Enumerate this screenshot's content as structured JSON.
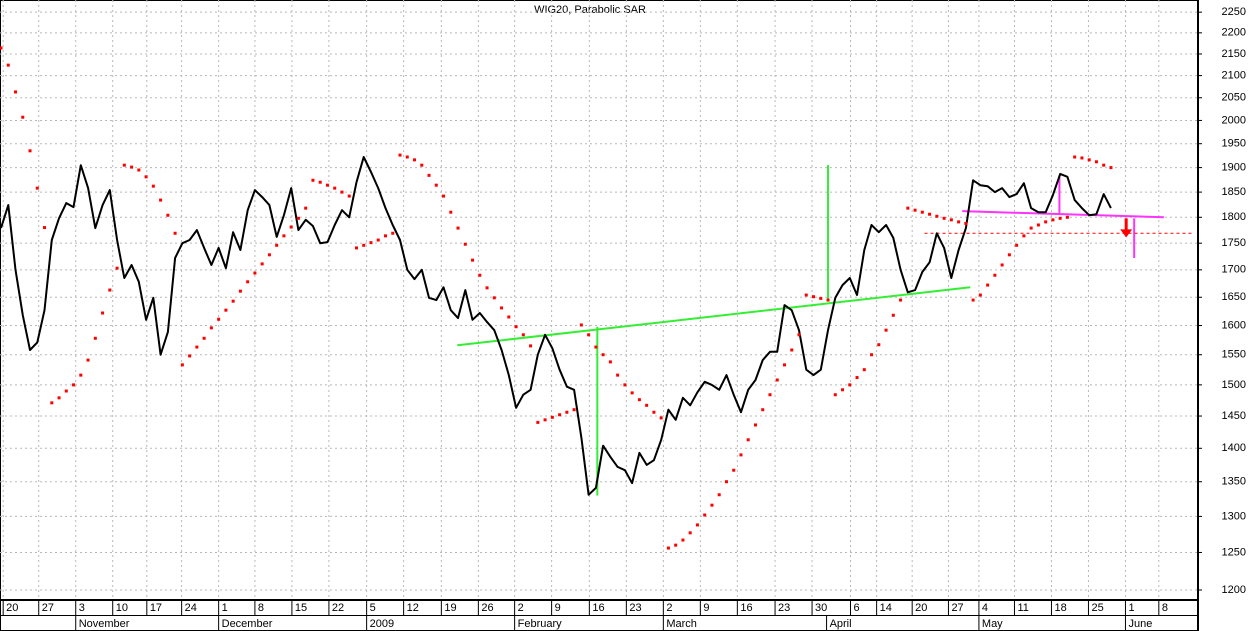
{
  "chart_data": {
    "type": "line",
    "title": "WIG20, Parabolic SAR",
    "x": [
      0,
      1,
      2,
      3,
      4,
      5,
      6,
      7,
      8,
      9,
      10,
      11,
      12,
      13,
      14,
      15,
      16,
      17,
      18,
      19,
      20,
      21,
      22,
      23,
      24,
      25,
      26,
      27,
      28,
      29,
      30,
      31,
      32,
      33,
      34,
      35,
      36,
      37,
      38,
      39,
      40,
      41,
      42,
      43,
      44,
      45,
      46,
      47,
      48,
      49,
      50,
      51,
      52,
      53,
      54,
      55,
      56,
      57,
      58,
      59,
      60,
      61,
      62,
      63,
      64,
      65,
      66,
      67,
      68,
      69,
      70,
      71,
      72,
      73,
      74,
      75,
      76,
      77,
      78,
      79,
      80,
      81,
      82,
      83,
      84,
      85,
      86,
      87,
      88,
      89,
      90,
      91,
      92,
      93,
      94,
      95,
      96,
      97,
      98,
      99,
      100,
      101,
      102,
      103,
      104,
      105,
      106,
      107,
      108,
      109,
      110,
      111,
      112,
      113,
      114,
      115,
      116,
      117,
      118,
      119,
      120,
      121,
      122,
      123,
      124,
      125,
      126,
      127,
      128,
      129,
      130,
      131,
      132,
      133,
      134,
      135,
      136,
      137,
      138,
      139,
      140,
      141,
      142,
      143,
      144,
      145,
      146,
      147,
      148,
      149,
      150,
      151,
      152,
      153
    ],
    "series": [
      {
        "color": "#000000",
        "style": "line",
        "values": [
          1779,
          1824,
          1700,
          1618,
          1558,
          1571,
          1627,
          1756,
          1798,
          1828,
          1820,
          1905,
          1858,
          1779,
          1824,
          1854,
          1756,
          1685,
          1709,
          1678,
          1610,
          1649,
          1550,
          1589,
          1722,
          1750,
          1756,
          1775,
          1741,
          1709,
          1741,
          1703,
          1771,
          1737,
          1814,
          1854,
          1840,
          1824,
          1762,
          1804,
          1858,
          1775,
          1795,
          1783,
          1750,
          1752,
          1785,
          1814,
          1800,
          1870,
          1922,
          1891,
          1858,
          1818,
          1785,
          1756,
          1700,
          1683,
          1700,
          1649,
          1645,
          1668,
          1627,
          1613,
          1663,
          1610,
          1622,
          1606,
          1592,
          1558,
          1516,
          1463,
          1484,
          1492,
          1550,
          1584,
          1561,
          1525,
          1497,
          1492,
          1416,
          1331,
          1341,
          1404,
          1387,
          1372,
          1367,
          1348,
          1393,
          1375,
          1382,
          1413,
          1460,
          1444,
          1479,
          1467,
          1488,
          1505,
          1500,
          1492,
          1516,
          1484,
          1456,
          1492,
          1508,
          1541,
          1555,
          1555,
          1636,
          1627,
          1592,
          1525,
          1516,
          1525,
          1592,
          1649,
          1672,
          1685,
          1654,
          1737,
          1785,
          1771,
          1785,
          1760,
          1700,
          1659,
          1663,
          1696,
          1714,
          1769,
          1741,
          1685,
          1737,
          1779,
          1874,
          1864,
          1862,
          1850,
          1858,
          1840,
          1846,
          1868,
          1818,
          1810,
          1810,
          1844,
          1887,
          1881,
          1834,
          1818,
          1804,
          1806,
          1846,
          1818
        ]
      },
      {
        "color": "#ff0000",
        "style": "dots",
        "values": [
          2164,
          2124,
          2063,
          2007,
          1935,
          1858,
          1780,
          1471,
          1479,
          1490,
          1500,
          1516,
          1541,
          1578,
          1622,
          1663,
          1703,
          1905,
          1901,
          1895,
          1881,
          1862,
          1834,
          1804,
          1769,
          1533,
          1548,
          1563,
          1578,
          1596,
          1611,
          1627,
          1643,
          1661,
          1678,
          1694,
          1711,
          1728,
          1746,
          1764,
          1781,
          1798,
          1818,
          1874,
          1870,
          1864,
          1858,
          1850,
          1842,
          1741,
          1746,
          1751,
          1756,
          1764,
          1769,
          1926,
          1922,
          1916,
          1905,
          1884,
          1864,
          1842,
          1810,
          1779,
          1748,
          1718,
          1690,
          1667,
          1649,
          1631,
          1615,
          1598,
          1584,
          1565,
          1440,
          1444,
          1448,
          1452,
          1456,
          1460,
          1601,
          1584,
          1563,
          1550,
          1538,
          1516,
          1500,
          1487,
          1476,
          1467,
          1456,
          1447,
          1256,
          1260,
          1267,
          1277,
          1288,
          1302,
          1316,
          1331,
          1350,
          1367,
          1390,
          1413,
          1436,
          1460,
          1484,
          1508,
          1533,
          1558,
          1584,
          1654,
          1651,
          1648,
          1645,
          1484,
          1492,
          1500,
          1512,
          1525,
          1550,
          1567,
          1592,
          1618,
          1645,
          1818,
          1814,
          1810,
          1806,
          1802,
          1798,
          1795,
          1791,
          1788,
          1645,
          1654,
          1672,
          1690,
          1709,
          1728,
          1746,
          1764,
          1779,
          1785,
          1791,
          1795,
          1798,
          1800,
          1922,
          1920,
          1916,
          1912,
          1905,
          1900
        ]
      }
    ],
    "log_scale": true,
    "grid": true,
    "xlim": [
      0,
      165
    ],
    "ylim": [
      1187,
      2280
    ],
    "yticks": [
      1200,
      1250,
      1300,
      1350,
      1400,
      1450,
      1500,
      1550,
      1600,
      1650,
      1700,
      1750,
      1800,
      1850,
      1900,
      1950,
      2000,
      2050,
      2100,
      2150,
      2200,
      2250
    ],
    "xticks": [
      {
        "value": 0.3,
        "label": "20"
      },
      {
        "value": 5.2,
        "label": "27"
      },
      {
        "value": 10.3,
        "label": "3"
      },
      {
        "value": 15.4,
        "label": "10"
      },
      {
        "value": 20.1,
        "label": "17"
      },
      {
        "value": 24.9,
        "label": "24"
      },
      {
        "value": 30.0,
        "label": "1"
      },
      {
        "value": 35.0,
        "label": "8"
      },
      {
        "value": 40.1,
        "label": "15"
      },
      {
        "value": 45.2,
        "label": "22"
      },
      {
        "value": 50.4,
        "label": "5"
      },
      {
        "value": 55.5,
        "label": "12"
      },
      {
        "value": 60.7,
        "label": "19"
      },
      {
        "value": 65.8,
        "label": "26"
      },
      {
        "value": 70.8,
        "label": "2"
      },
      {
        "value": 75.9,
        "label": "9"
      },
      {
        "value": 81.1,
        "label": "16"
      },
      {
        "value": 86.2,
        "label": "23"
      },
      {
        "value": 91.3,
        "label": "2"
      },
      {
        "value": 96.4,
        "label": "9"
      },
      {
        "value": 101.5,
        "label": "16"
      },
      {
        "value": 106.7,
        "label": "23"
      },
      {
        "value": 111.8,
        "label": "30"
      },
      {
        "value": 117.1,
        "label": "6"
      },
      {
        "value": 120.7,
        "label": "14"
      },
      {
        "value": 125.6,
        "label": "20"
      },
      {
        "value": 130.6,
        "label": "27"
      },
      {
        "value": 134.8,
        "label": "4"
      },
      {
        "value": 139.7,
        "label": "11"
      },
      {
        "value": 144.8,
        "label": "18"
      },
      {
        "value": 149.9,
        "label": "25"
      },
      {
        "value": 155.0,
        "label": "1"
      },
      {
        "value": 159.6,
        "label": "8"
      }
    ],
    "month_labels": [
      {
        "value": 10.3,
        "label": "November"
      },
      {
        "value": 30.0,
        "label": "December"
      },
      {
        "value": 50.4,
        "label": "2009"
      },
      {
        "value": 70.8,
        "label": "February"
      },
      {
        "value": 91.3,
        "label": "March"
      },
      {
        "value": 113.8,
        "label": "April"
      },
      {
        "value": 134.8,
        "label": "May"
      },
      {
        "value": 155.0,
        "label": "June"
      }
    ],
    "lines": [
      {
        "x": [
          62.9,
          133.6
        ],
        "y": [
          1566,
          1668
        ],
        "color": "#33ee33"
      },
      {
        "x": [
          82.2,
          82.2
        ],
        "y": [
          1598,
          1330
        ],
        "color": "#33ee33"
      },
      {
        "x": [
          114,
          114
        ],
        "y": [
          1905,
          1645
        ],
        "color": "#33ee33"
      },
      {
        "x": [
          132.5,
          160.3
        ],
        "y": [
          1812,
          1800
        ],
        "color": "#ff33ff"
      },
      {
        "x": [
          145.9,
          145.9
        ],
        "y": [
          1884,
          1808
        ],
        "color": "#ff33ff"
      },
      {
        "x": [
          156.2,
          156.2
        ],
        "y": [
          1798,
          1722
        ],
        "color": "#ff33ff"
      },
      {
        "x": [
          127.3,
          164.5
        ],
        "y": [
          1769,
          1769
        ],
        "color": "#ff0000",
        "dash": true
      },
      {
        "x": [
          155.1,
          155.1
        ],
        "y": [
          1798,
          1765
        ],
        "color": "#ff0000",
        "arrow": true
      }
    ]
  }
}
